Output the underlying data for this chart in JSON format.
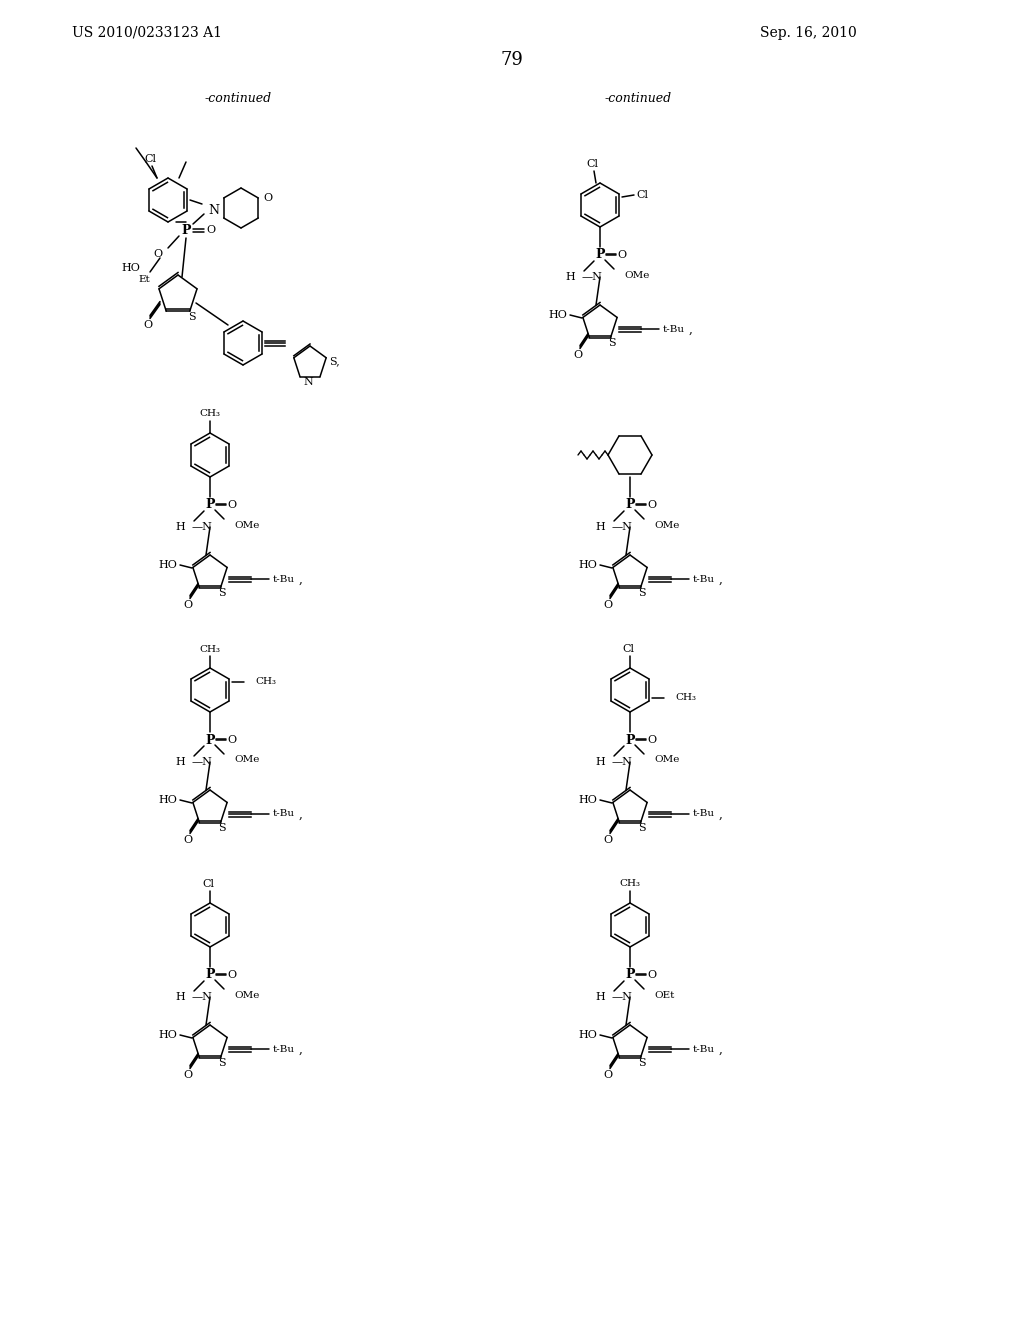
{
  "patent_num": "US 2010/0233123 A1",
  "patent_date": "Sep. 16, 2010",
  "page_num": "79",
  "continued": "-continued",
  "bg": "#ffffff",
  "fg": "#000000"
}
